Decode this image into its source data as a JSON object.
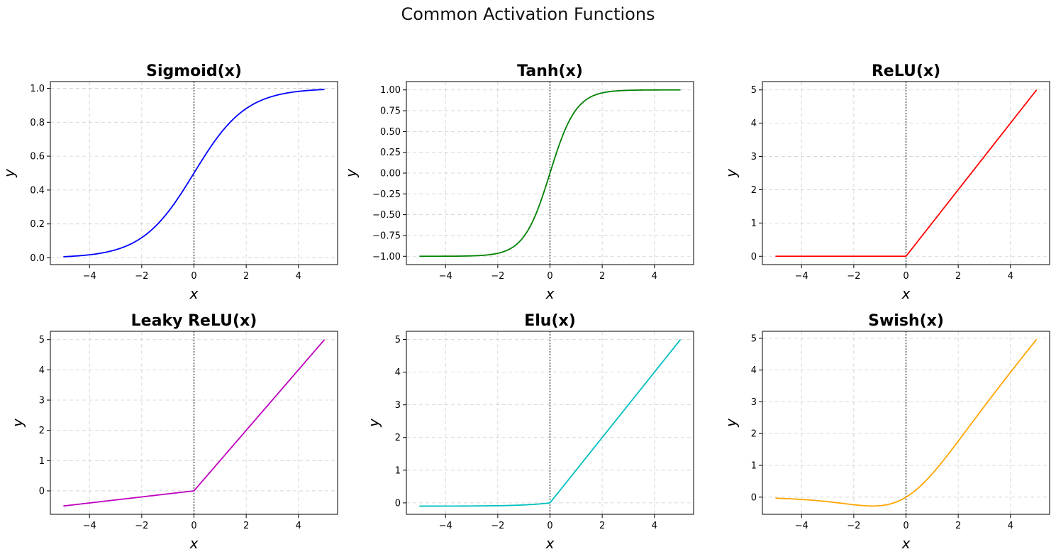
{
  "figure": {
    "title": "Common Activation Functions"
  },
  "chart_data": [
    {
      "type": "line",
      "title": "Sigmoid(x)",
      "xlabel": "x",
      "ylabel": "y",
      "function": "sigmoid",
      "color": "#0000ff",
      "x_range": [
        -5,
        5
      ],
      "xlim": [
        -5.5,
        5.5
      ],
      "ylim": [
        -0.04,
        1.04
      ],
      "xticks": [
        "−4",
        "−2",
        "0",
        "2",
        "4"
      ],
      "yticks": [
        "0.0",
        "0.2",
        "0.4",
        "0.6",
        "0.8",
        "1.0"
      ],
      "xtick_values": [
        -4,
        -2,
        0,
        2,
        4
      ],
      "ytick_values": [
        0,
        0.2,
        0.4,
        0.6,
        0.8,
        1.0
      ],
      "grid": true,
      "vertical_reference_line_x": 0
    },
    {
      "type": "line",
      "title": "Tanh(x)",
      "xlabel": "x",
      "ylabel": "y",
      "function": "tanh",
      "color": "#008000",
      "x_range": [
        -5,
        5
      ],
      "xlim": [
        -5.5,
        5.5
      ],
      "ylim": [
        -1.1,
        1.1
      ],
      "xticks": [
        "−4",
        "−2",
        "0",
        "2",
        "4"
      ],
      "yticks": [
        "−1.00",
        "−0.75",
        "−0.50",
        "−0.25",
        "0.00",
        "0.25",
        "0.50",
        "0.75",
        "1.00"
      ],
      "xtick_values": [
        -4,
        -2,
        0,
        2,
        4
      ],
      "ytick_values": [
        -1,
        -0.75,
        -0.5,
        -0.25,
        0,
        0.25,
        0.5,
        0.75,
        1
      ],
      "grid": true,
      "vertical_reference_line_x": 0
    },
    {
      "type": "line",
      "title": "ReLU(x)",
      "xlabel": "x",
      "ylabel": "y",
      "function": "relu",
      "color": "#ff0000",
      "x_range": [
        -5,
        5
      ],
      "xlim": [
        -5.5,
        5.5
      ],
      "ylim": [
        -0.25,
        5.25
      ],
      "xticks": [
        "−4",
        "−2",
        "0",
        "2",
        "4"
      ],
      "yticks": [
        "0",
        "1",
        "2",
        "3",
        "4",
        "5"
      ],
      "xtick_values": [
        -4,
        -2,
        0,
        2,
        4
      ],
      "ytick_values": [
        0,
        1,
        2,
        3,
        4,
        5
      ],
      "grid": true,
      "vertical_reference_line_x": 0
    },
    {
      "type": "line",
      "title": "Leaky ReLU(x)",
      "xlabel": "x",
      "ylabel": "y",
      "function": "leaky_relu",
      "alpha": 0.1,
      "color": "#bf00bf",
      "x_range": [
        -5,
        5
      ],
      "xlim": [
        -5.5,
        5.5
      ],
      "ylim": [
        -0.775,
        5.275
      ],
      "xticks": [
        "−4",
        "−2",
        "0",
        "2",
        "4"
      ],
      "yticks": [
        "0",
        "1",
        "2",
        "3",
        "4",
        "5"
      ],
      "xtick_values": [
        -4,
        -2,
        0,
        2,
        4
      ],
      "ytick_values": [
        0,
        1,
        2,
        3,
        4,
        5
      ],
      "grid": true,
      "vertical_reference_line_x": 0
    },
    {
      "type": "line",
      "title": "Elu(x)",
      "xlabel": "x",
      "ylabel": "y",
      "function": "elu",
      "alpha": 0.1,
      "color": "#00bfbf",
      "x_range": [
        -5,
        5
      ],
      "xlim": [
        -5.5,
        5.5
      ],
      "ylim": [
        -0.35,
        5.25
      ],
      "xticks": [
        "−4",
        "−2",
        "0",
        "2",
        "4"
      ],
      "yticks": [
        "0",
        "1",
        "2",
        "3",
        "4",
        "5"
      ],
      "xtick_values": [
        -4,
        -2,
        0,
        2,
        4
      ],
      "ytick_values": [
        0,
        1,
        2,
        3,
        4,
        5
      ],
      "grid": true,
      "vertical_reference_line_x": 0
    },
    {
      "type": "line",
      "title": "Swish(x)",
      "xlabel": "x",
      "ylabel": "y",
      "function": "swish",
      "color": "#ffa500",
      "x_range": [
        -5,
        5
      ],
      "xlim": [
        -5.5,
        5.5
      ],
      "ylim": [
        -0.54,
        5.22
      ],
      "xticks": [
        "−4",
        "−2",
        "0",
        "2",
        "4"
      ],
      "yticks": [
        "0",
        "1",
        "2",
        "3",
        "4",
        "5"
      ],
      "xtick_values": [
        -4,
        -2,
        0,
        2,
        4
      ],
      "ytick_values": [
        0,
        1,
        2,
        3,
        4,
        5
      ],
      "grid": true,
      "vertical_reference_line_x": 0
    }
  ]
}
